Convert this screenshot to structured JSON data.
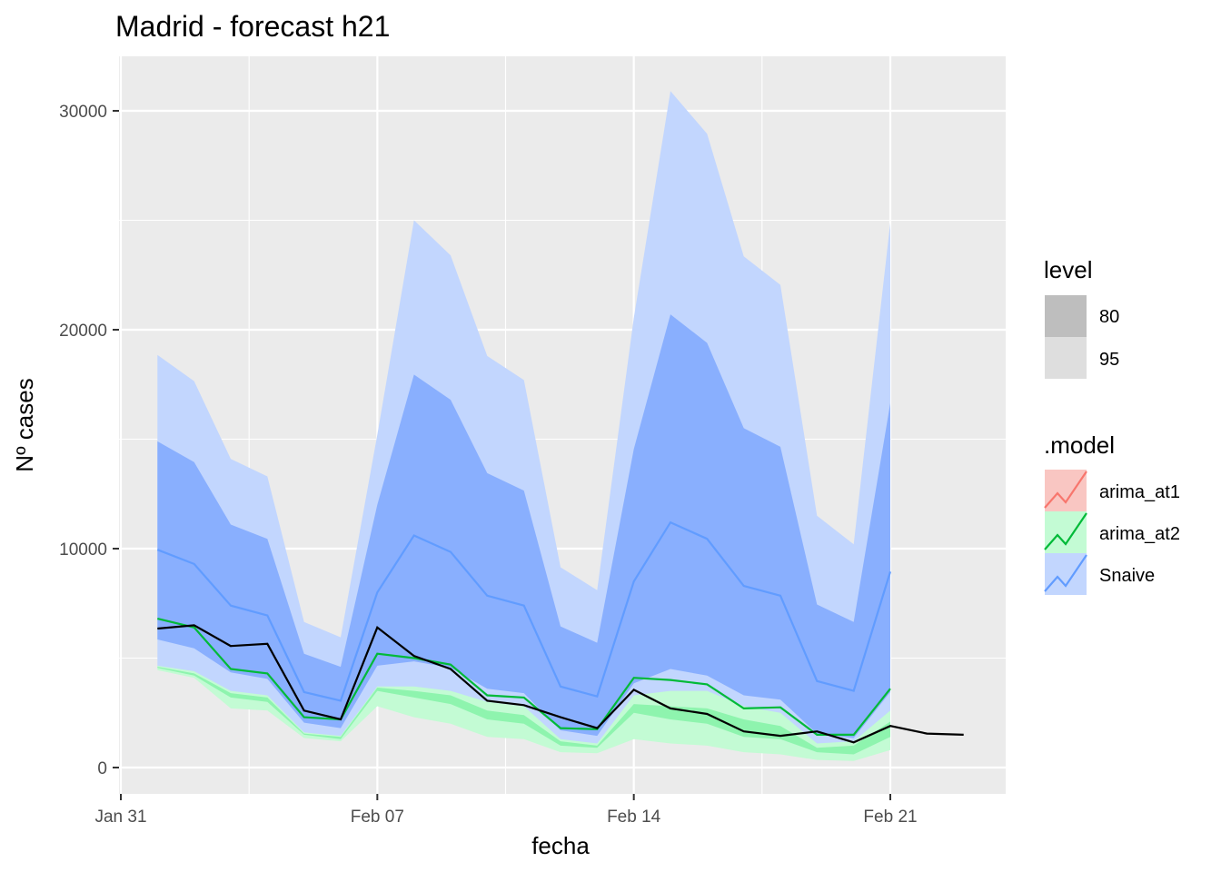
{
  "chart_data": {
    "type": "line",
    "title": "Madrid - forecast h21",
    "xlabel": "fecha",
    "ylabel": "Nº cases",
    "x_ticks": [
      "Jan 31",
      "Feb 07",
      "Feb 14",
      "Feb 21"
    ],
    "y_ticks": [
      0,
      10000,
      20000,
      30000
    ],
    "ylim": [
      -1200,
      32500
    ],
    "grid": true,
    "legend_position": "right",
    "forecast_dates": [
      "2021-02-01",
      "2021-02-02",
      "2021-02-03",
      "2021-02-04",
      "2021-02-05",
      "2021-02-06",
      "2021-02-07",
      "2021-02-08",
      "2021-02-09",
      "2021-02-10",
      "2021-02-11",
      "2021-02-12",
      "2021-02-13",
      "2021-02-14",
      "2021-02-15",
      "2021-02-16",
      "2021-02-17",
      "2021-02-18",
      "2021-02-19",
      "2021-02-20",
      "2021-02-21"
    ],
    "series": [
      {
        "name": "arima_at2",
        "color": "#00BA38",
        "mean": [
          6800,
          6400,
          4500,
          4300,
          2300,
          2200,
          5200,
          5000,
          4700,
          3300,
          3200,
          1800,
          1750,
          4100,
          4000,
          3800,
          2700,
          2750,
          1500,
          1500,
          3600
        ],
        "lo80": [
          4550,
          4200,
          3200,
          3000,
          1500,
          1300,
          3500,
          3200,
          2900,
          2200,
          2000,
          1000,
          900,
          2500,
          2200,
          2000,
          1400,
          1300,
          700,
          600,
          1400
        ],
        "hi80": [
          4600,
          4300,
          3400,
          3200,
          1550,
          1400,
          3650,
          3500,
          3300,
          2600,
          2400,
          1200,
          1000,
          2900,
          2800,
          2700,
          2200,
          1900,
          900,
          1000,
          2100
        ],
        "lo95": [
          4450,
          4100,
          2700,
          2600,
          1350,
          1200,
          2800,
          2300,
          2000,
          1400,
          1300,
          700,
          650,
          1300,
          1100,
          1000,
          700,
          600,
          350,
          300,
          800
        ],
        "hi95": [
          4650,
          4400,
          3500,
          3300,
          1600,
          1450,
          3700,
          3700,
          3500,
          3000,
          2800,
          1300,
          1100,
          3300,
          3500,
          3500,
          2800,
          2500,
          1100,
          1200,
          2600
        ]
      },
      {
        "name": "Snaive",
        "color": "#619CFF",
        "mean": [
          9950,
          9300,
          7400,
          6950,
          3450,
          3050,
          8000,
          10600,
          9850,
          7850,
          7400,
          3700,
          3250,
          8500,
          11200,
          10450,
          8300,
          7850,
          3950,
          3500,
          8950
        ],
        "lo80": [
          5850,
          5450,
          4350,
          4050,
          2050,
          1800,
          4650,
          4850,
          4550,
          3600,
          3400,
          1700,
          1450,
          3850,
          4500,
          4200,
          3300,
          3100,
          1550,
          1350,
          3450
        ],
        "hi80": [
          14900,
          13950,
          11100,
          10450,
          5200,
          4600,
          12000,
          17950,
          16800,
          13450,
          12650,
          6450,
          5700,
          14550,
          20700,
          19400,
          15500,
          14650,
          7450,
          6650,
          16650
        ],
        "lo95": [
          4600,
          4250,
          3400,
          3150,
          1600,
          1400,
          3600,
          3450,
          3200,
          2500,
          2350,
          1200,
          1000,
          2650,
          2700,
          2500,
          1950,
          1800,
          950,
          850,
          2000
        ],
        "hi95": [
          18850,
          17650,
          14100,
          13300,
          6650,
          5950,
          15200,
          25000,
          23400,
          18800,
          17700,
          9150,
          8100,
          20550,
          30900,
          28950,
          23350,
          22050,
          11500,
          10200,
          24900
        ]
      }
    ],
    "actual": {
      "dates": [
        "2021-02-01",
        "2021-02-02",
        "2021-02-03",
        "2021-02-04",
        "2021-02-05",
        "2021-02-06",
        "2021-02-07",
        "2021-02-08",
        "2021-02-09",
        "2021-02-10",
        "2021-02-11",
        "2021-02-12",
        "2021-02-13",
        "2021-02-14",
        "2021-02-15",
        "2021-02-16",
        "2021-02-17",
        "2021-02-18",
        "2021-02-19",
        "2021-02-20",
        "2021-02-21",
        "2021-02-22",
        "2021-02-23"
      ],
      "values": [
        6350,
        6500,
        5550,
        5650,
        2600,
        2200,
        6400,
        5100,
        4500,
        3050,
        2850,
        2300,
        1800,
        3550,
        2700,
        2450,
        1650,
        1450,
        1650,
        1150,
        1900,
        1550,
        1500
      ],
      "color": "#000000"
    },
    "legend": {
      "level": {
        "title": "level",
        "items": [
          {
            "label": "80",
            "color": "#bebebe"
          },
          {
            "label": "95",
            "color": "#dedede"
          }
        ]
      },
      "model": {
        "title": ".model",
        "items": [
          {
            "label": "arima_at1",
            "color": "#F8766D"
          },
          {
            "label": "arima_at2",
            "color": "#00BA38"
          },
          {
            "label": "Snaive",
            "color": "#619CFF"
          }
        ]
      }
    },
    "colors": {
      "panel_background": "#EBEBEB",
      "grid": "#FFFFFF",
      "snaive_band80": "#89AFFE",
      "snaive_band95": "#C2D6FE",
      "arima_band80": "#8EF4AE",
      "arima_band95": "#C3FBD4"
    }
  }
}
